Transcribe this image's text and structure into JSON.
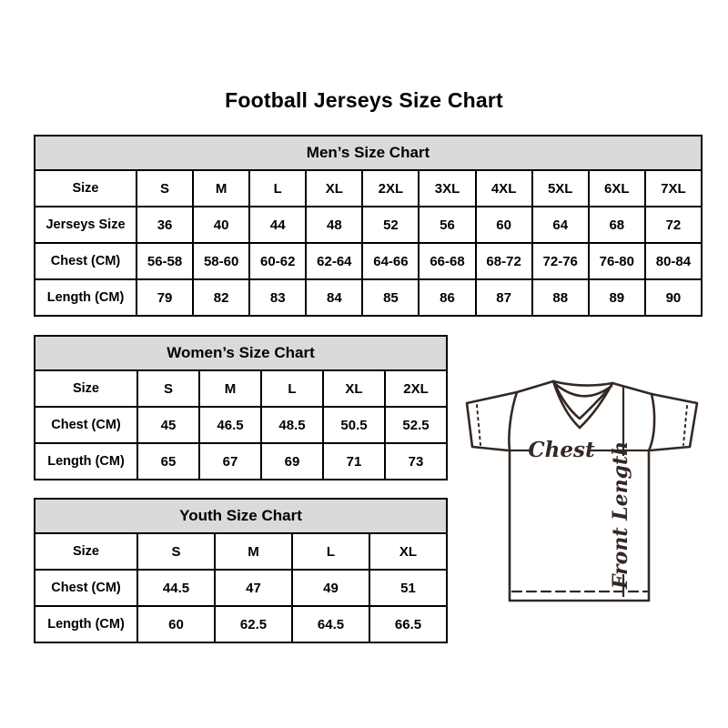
{
  "page": {
    "title": "Football Jerseys Size Chart"
  },
  "tables": {
    "men": {
      "title": "Men’s Size Chart",
      "columns": [
        "Size",
        "S",
        "M",
        "L",
        "XL",
        "2XL",
        "3XL",
        "4XL",
        "5XL",
        "6XL",
        "7XL"
      ],
      "rows": [
        {
          "label": "Jerseys Size",
          "values": [
            "36",
            "40",
            "44",
            "48",
            "52",
            "56",
            "60",
            "64",
            "68",
            "72"
          ]
        },
        {
          "label": "Chest (CM)",
          "values": [
            "56-58",
            "58-60",
            "60-62",
            "62-64",
            "64-66",
            "66-68",
            "68-72",
            "72-76",
            "76-80",
            "80-84"
          ]
        },
        {
          "label": "Length (CM)",
          "values": [
            "79",
            "82",
            "83",
            "84",
            "85",
            "86",
            "87",
            "88",
            "89",
            "90"
          ]
        }
      ]
    },
    "women": {
      "title": "Women’s Size Chart",
      "columns": [
        "Size",
        "S",
        "M",
        "L",
        "XL",
        "2XL"
      ],
      "rows": [
        {
          "label": "Chest (CM)",
          "values": [
            "45",
            "46.5",
            "48.5",
            "50.5",
            "52.5"
          ]
        },
        {
          "label": "Length (CM)",
          "values": [
            "65",
            "67",
            "69",
            "71",
            "73"
          ]
        }
      ]
    },
    "youth": {
      "title": "Youth Size Chart",
      "columns": [
        "Size",
        "S",
        "M",
        "L",
        "XL"
      ],
      "rows": [
        {
          "label": "Chest (CM)",
          "values": [
            "44.5",
            "47",
            "49",
            "51"
          ]
        },
        {
          "label": "Length (CM)",
          "values": [
            "60",
            "62.5",
            "64.5",
            "66.5"
          ]
        }
      ]
    }
  },
  "diagram": {
    "chest_label": "Chest",
    "front_length_label": "Front Length"
  },
  "colors": {
    "header_bg": "#dadada",
    "table_border": "#000000",
    "text": "#000000",
    "jersey_line": "#332823"
  }
}
